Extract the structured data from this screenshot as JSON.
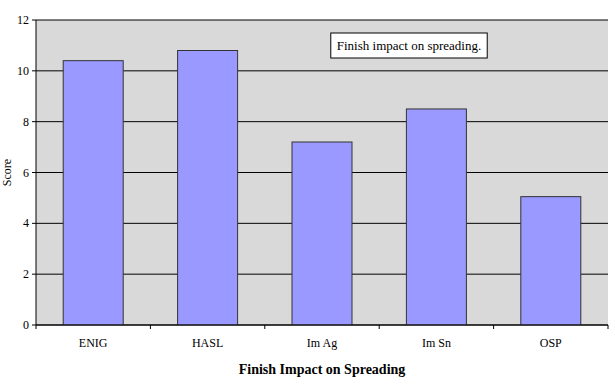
{
  "chart_data": {
    "type": "bar",
    "title": "Finish impact on spreading.",
    "xlabel": "Finish Impact on Spreading",
    "ylabel": "Score",
    "categories": [
      "ENIG",
      "HASL",
      "Im Ag",
      "Im Sn",
      "OSP"
    ],
    "values": [
      10.4,
      10.8,
      7.2,
      8.5,
      5.05
    ],
    "color": "#9999ff",
    "ylim": [
      0,
      12
    ],
    "yticks": [
      0,
      2,
      4,
      6,
      8,
      10,
      12
    ],
    "grid": true
  }
}
